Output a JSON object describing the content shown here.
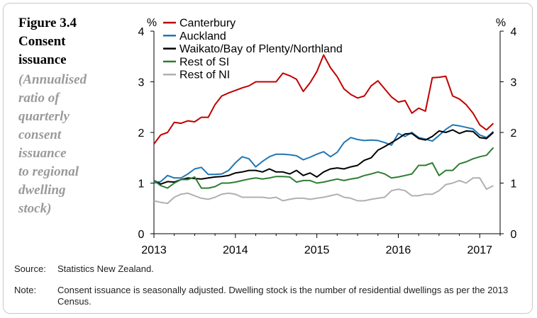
{
  "figure": {
    "title_lines": [
      "Figure 3.4",
      "Consent",
      "issuance"
    ],
    "subtitle_lines": [
      "(Annualised",
      "ratio of",
      "quarterly",
      "consent",
      "issuance",
      "to regional",
      "dwelling",
      "stock)"
    ]
  },
  "footer": {
    "source_label": "Source:",
    "source_text": "Statistics New Zealand.",
    "note_label": "Note:",
    "note_text": "Consent issuance is seasonally adjusted. Dwelling stock is the number of residential dwellings as per the 2013 Census."
  },
  "chart_data": {
    "type": "line",
    "y_unit_left": "%",
    "y_unit_right": "%",
    "ylim": [
      0,
      4
    ],
    "yticks": [
      0,
      1,
      2,
      3,
      4
    ],
    "xlim": [
      2013.0,
      2017.25
    ],
    "xticks": [
      2013,
      2014,
      2015,
      2016,
      2017
    ],
    "xtick_labels": [
      "2013",
      "2014",
      "2015",
      "2016",
      "2017"
    ],
    "legend_position": "top-left",
    "x": [
      2013.0,
      2013.083,
      2013.167,
      2013.25,
      2013.333,
      2013.417,
      2013.5,
      2013.583,
      2013.667,
      2013.75,
      2013.833,
      2013.917,
      2014.0,
      2014.083,
      2014.167,
      2014.25,
      2014.333,
      2014.417,
      2014.5,
      2014.583,
      2014.667,
      2014.75,
      2014.833,
      2014.917,
      2015.0,
      2015.083,
      2015.167,
      2015.25,
      2015.333,
      2015.417,
      2015.5,
      2015.583,
      2015.667,
      2015.75,
      2015.833,
      2015.917,
      2016.0,
      2016.083,
      2016.167,
      2016.25,
      2016.333,
      2016.417,
      2016.5,
      2016.583,
      2016.667,
      2016.75,
      2016.833,
      2016.917,
      2017.0,
      2017.083,
      2017.167
    ],
    "series": [
      {
        "name": "Canterbury",
        "color": "#c00000",
        "values": [
          1.77,
          1.95,
          2.0,
          2.2,
          2.18,
          2.23,
          2.21,
          2.3,
          2.3,
          2.55,
          2.72,
          2.78,
          2.83,
          2.88,
          2.92,
          3.0,
          3.0,
          3.0,
          3.0,
          3.17,
          3.12,
          3.05,
          2.81,
          2.98,
          3.2,
          3.53,
          3.28,
          3.1,
          2.86,
          2.75,
          2.68,
          2.72,
          2.92,
          3.02,
          2.86,
          2.7,
          2.6,
          2.63,
          2.38,
          2.48,
          2.42,
          3.08,
          3.09,
          3.11,
          2.72,
          2.66,
          2.55,
          2.38,
          2.15,
          2.05,
          2.18
        ]
      },
      {
        "name": "Auckland",
        "color": "#1f77b4",
        "values": [
          1.0,
          1.03,
          1.15,
          1.1,
          1.1,
          1.18,
          1.28,
          1.31,
          1.17,
          1.17,
          1.18,
          1.25,
          1.4,
          1.52,
          1.48,
          1.32,
          1.43,
          1.52,
          1.57,
          1.57,
          1.56,
          1.54,
          1.46,
          1.51,
          1.57,
          1.62,
          1.52,
          1.61,
          1.8,
          1.9,
          1.86,
          1.84,
          1.85,
          1.84,
          1.8,
          1.75,
          1.98,
          1.92,
          2.0,
          1.9,
          1.87,
          1.83,
          1.94,
          2.06,
          2.15,
          2.13,
          2.1,
          2.07,
          1.95,
          1.9,
          2.02
        ]
      },
      {
        "name": "Waikato/Bay of Plenty/Northland",
        "color": "#000000",
        "values": [
          1.05,
          0.98,
          1.03,
          1.02,
          1.07,
          1.1,
          1.09,
          1.08,
          1.1,
          1.12,
          1.13,
          1.15,
          1.2,
          1.22,
          1.25,
          1.25,
          1.22,
          1.28,
          1.22,
          1.22,
          1.18,
          1.25,
          1.15,
          1.2,
          1.12,
          1.22,
          1.28,
          1.3,
          1.28,
          1.32,
          1.35,
          1.45,
          1.5,
          1.65,
          1.72,
          1.8,
          1.88,
          1.97,
          1.98,
          1.88,
          1.85,
          1.92,
          2.03,
          2.0,
          2.05,
          1.98,
          2.03,
          2.02,
          1.9,
          1.88,
          2.0
        ]
      },
      {
        "name": "Rest of SI",
        "color": "#2e7d32",
        "values": [
          1.05,
          0.95,
          0.9,
          1.0,
          1.07,
          1.07,
          1.12,
          0.9,
          0.9,
          0.93,
          1.0,
          1.0,
          1.02,
          1.05,
          1.08,
          1.1,
          1.08,
          1.1,
          1.13,
          1.13,
          1.12,
          1.02,
          1.05,
          1.05,
          1.0,
          1.02,
          1.05,
          1.08,
          1.05,
          1.08,
          1.1,
          1.15,
          1.18,
          1.22,
          1.18,
          1.1,
          1.12,
          1.15,
          1.18,
          1.35,
          1.35,
          1.4,
          1.15,
          1.25,
          1.25,
          1.38,
          1.42,
          1.48,
          1.52,
          1.55,
          1.7
        ]
      },
      {
        "name": "Rest of NI",
        "color": "#b0b0b0",
        "values": [
          0.65,
          0.62,
          0.6,
          0.72,
          0.78,
          0.8,
          0.75,
          0.7,
          0.68,
          0.72,
          0.78,
          0.8,
          0.78,
          0.72,
          0.72,
          0.72,
          0.72,
          0.7,
          0.72,
          0.65,
          0.68,
          0.7,
          0.7,
          0.68,
          0.7,
          0.72,
          0.75,
          0.78,
          0.72,
          0.7,
          0.65,
          0.65,
          0.68,
          0.7,
          0.72,
          0.85,
          0.88,
          0.85,
          0.75,
          0.75,
          0.78,
          0.78,
          0.85,
          0.97,
          1.0,
          1.05,
          1.0,
          1.1,
          1.1,
          0.88,
          0.95
        ]
      }
    ]
  }
}
